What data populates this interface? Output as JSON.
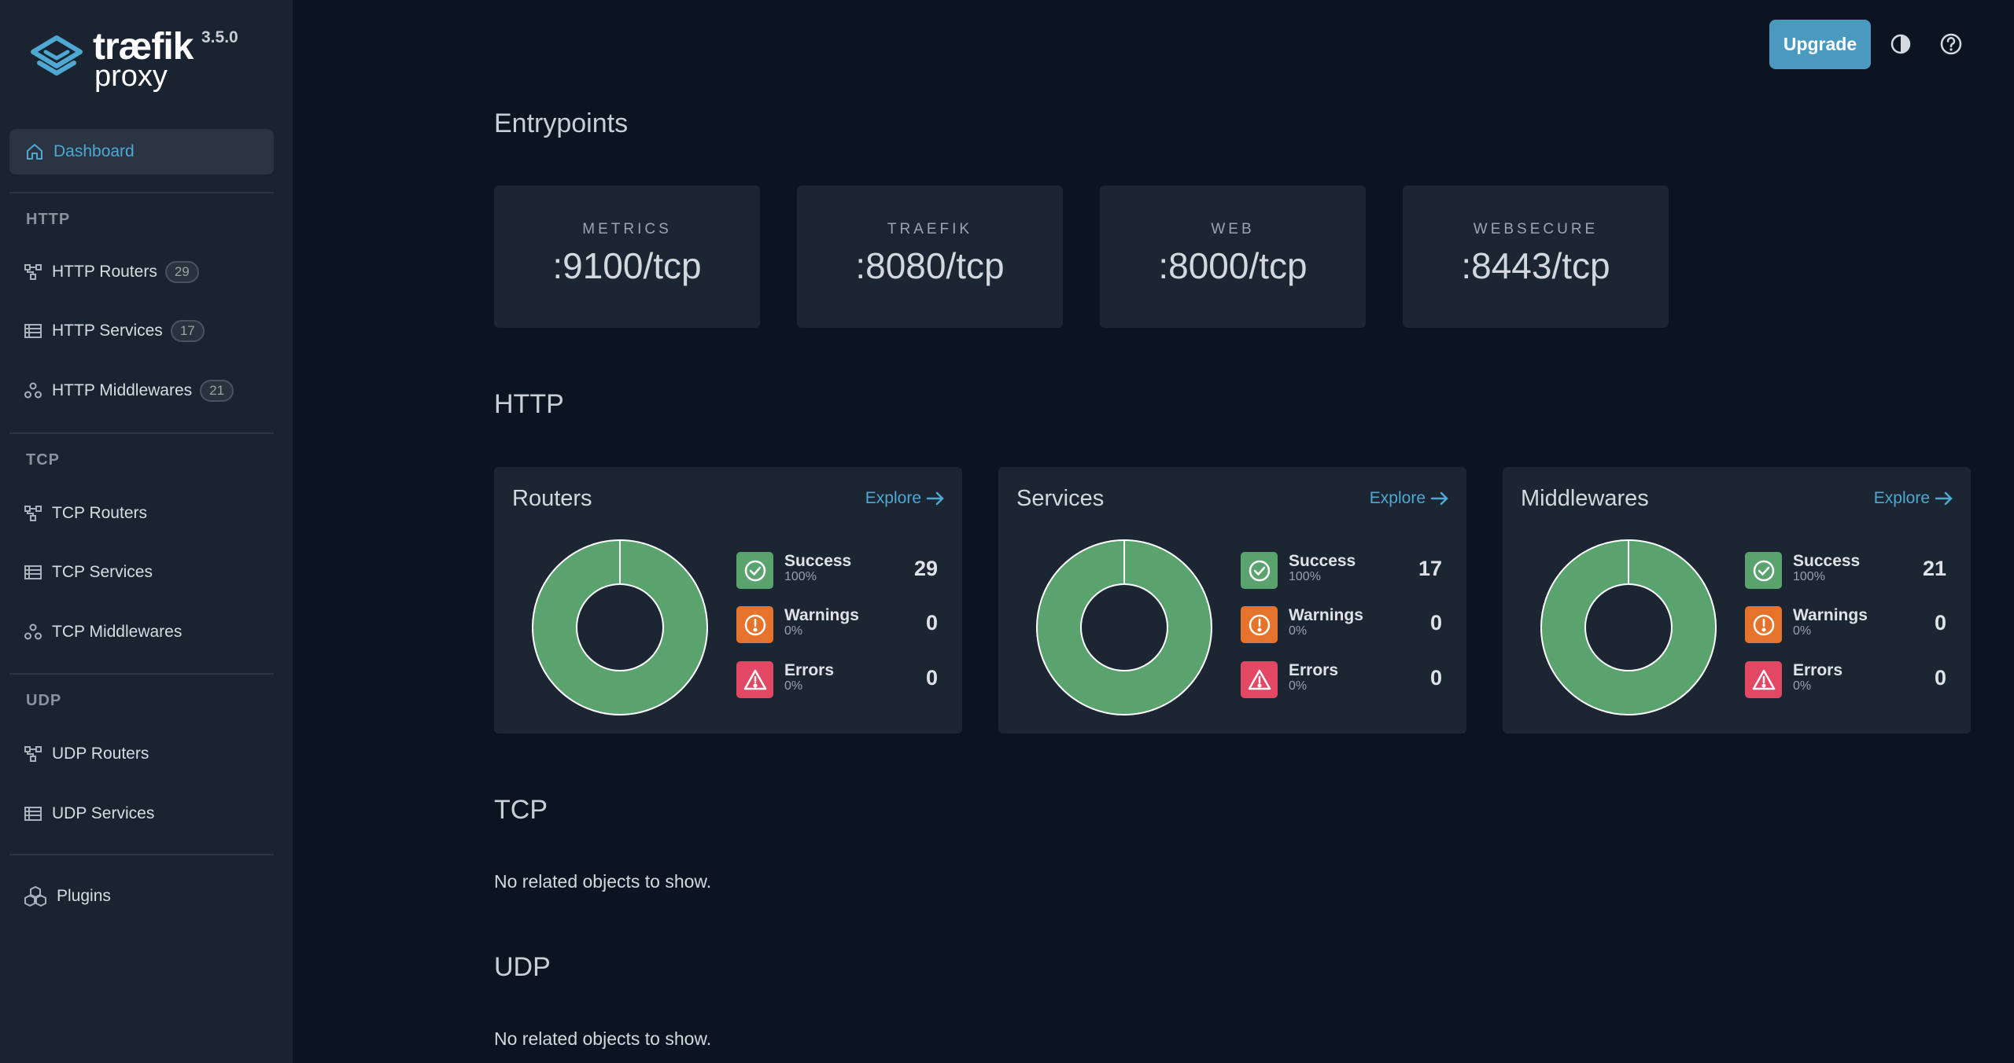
{
  "brand": {
    "word1": "træfik",
    "word2": "proxy",
    "version": "3.5.0"
  },
  "sidebar": {
    "dashboard": "Dashboard",
    "sections": [
      {
        "title": "HTTP",
        "items": [
          {
            "label": "HTTP Routers",
            "badge": "29"
          },
          {
            "label": "HTTP Services",
            "badge": "17"
          },
          {
            "label": "HTTP Middlewares",
            "badge": "21"
          }
        ]
      },
      {
        "title": "TCP",
        "items": [
          {
            "label": "TCP Routers"
          },
          {
            "label": "TCP Services"
          },
          {
            "label": "TCP Middlewares"
          }
        ]
      },
      {
        "title": "UDP",
        "items": [
          {
            "label": "UDP Routers"
          },
          {
            "label": "UDP Services"
          }
        ]
      }
    ],
    "plugins": "Plugins"
  },
  "header": {
    "upgrade": "Upgrade"
  },
  "entrypoints": {
    "title": "Entrypoints",
    "items": [
      {
        "name": "METRICS",
        "address": ":9100/tcp"
      },
      {
        "name": "TRAEFIK",
        "address": ":8080/tcp"
      },
      {
        "name": "WEB",
        "address": ":8000/tcp"
      },
      {
        "name": "WEBSECURE",
        "address": ":8443/tcp"
      }
    ]
  },
  "http": {
    "title": "HTTP",
    "explore_label": "Explore",
    "cards": [
      {
        "title": "Routers",
        "success": {
          "label": "Success",
          "pct": "100%",
          "count": "29"
        },
        "warnings": {
          "label": "Warnings",
          "pct": "0%",
          "count": "0"
        },
        "errors": {
          "label": "Errors",
          "pct": "0%",
          "count": "0"
        }
      },
      {
        "title": "Services",
        "success": {
          "label": "Success",
          "pct": "100%",
          "count": "17"
        },
        "warnings": {
          "label": "Warnings",
          "pct": "0%",
          "count": "0"
        },
        "errors": {
          "label": "Errors",
          "pct": "0%",
          "count": "0"
        }
      },
      {
        "title": "Middlewares",
        "success": {
          "label": "Success",
          "pct": "100%",
          "count": "21"
        },
        "warnings": {
          "label": "Warnings",
          "pct": "0%",
          "count": "0"
        },
        "errors": {
          "label": "Errors",
          "pct": "0%",
          "count": "0"
        }
      }
    ]
  },
  "tcp": {
    "title": "TCP",
    "empty": "No related objects to show."
  },
  "udp": {
    "title": "UDP",
    "empty": "No related objects to show."
  },
  "colors": {
    "success": "#5aa36f",
    "warning": "#e5732b",
    "error": "#e24764",
    "accent": "#4fa8d1"
  }
}
